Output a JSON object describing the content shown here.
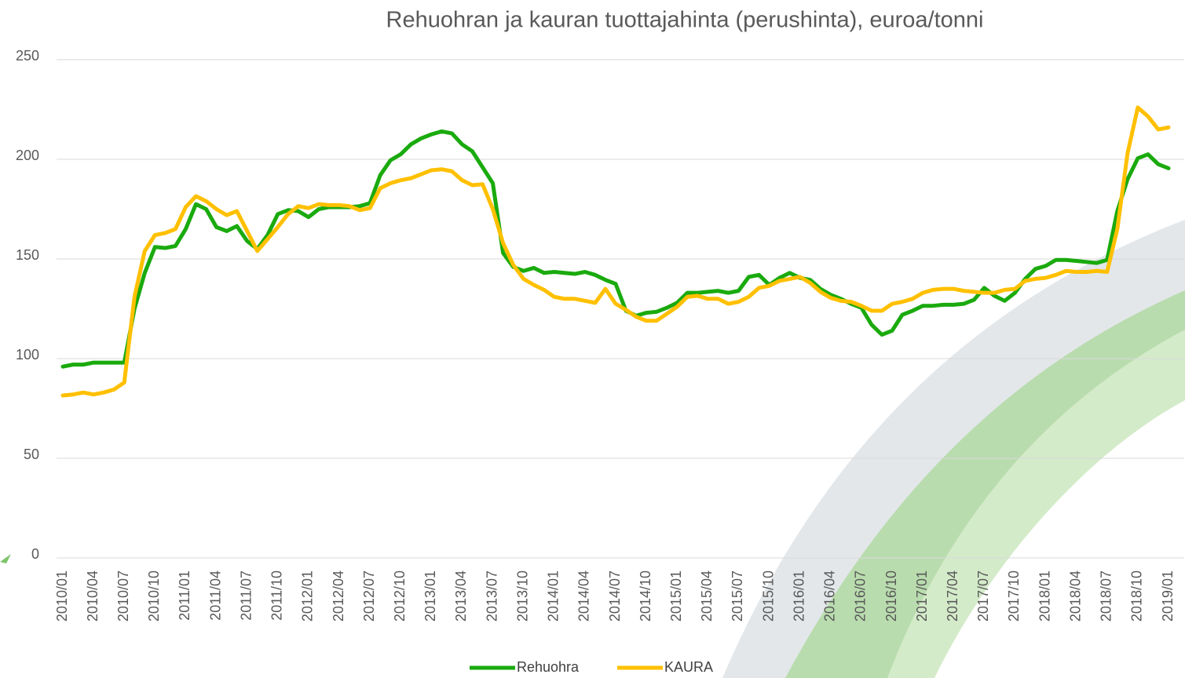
{
  "chart_data": {
    "type": "line",
    "title": "Rehuohran ja kauran tuottajahinta (perushinta), euroa/tonni",
    "categories": [
      "2010/01",
      null,
      null,
      "2010/04",
      null,
      null,
      "2010/07",
      null,
      null,
      "2010/10",
      null,
      null,
      "2011/01",
      null,
      null,
      "2011/04",
      null,
      null,
      "2011/07",
      null,
      null,
      "2011/10",
      null,
      null,
      "2012/01",
      null,
      null,
      "2012/04",
      null,
      null,
      "2012/07",
      null,
      null,
      "2012/10",
      null,
      null,
      "2013/01",
      null,
      null,
      "2013/04",
      null,
      null,
      "2013/07",
      null,
      null,
      "2013/10",
      null,
      null,
      "2014/01",
      null,
      null,
      "2014/04",
      null,
      null,
      "2014/07",
      null,
      null,
      "2014/10",
      null,
      null,
      "2015/01",
      null,
      null,
      "2015/04",
      null,
      null,
      "2015/07",
      null,
      null,
      "2015/10",
      null,
      null,
      "2016/01",
      null,
      null,
      "2016/04",
      null,
      null,
      "2016/07",
      null,
      null,
      "2016/10",
      null,
      null,
      "2017/01",
      null,
      null,
      "2017/04",
      null,
      null,
      "2017/07",
      null,
      null,
      "2017/10",
      null,
      null,
      "2018/01",
      null,
      null,
      "2018/04",
      null,
      null,
      "2018/07",
      null,
      null,
      "2018/10",
      null,
      null,
      "2019/01"
    ],
    "series": [
      {
        "name": "Rehuohra",
        "color": "#1aaa0e",
        "values": [
          96,
          97,
          97,
          98,
          98,
          98,
          98,
          125,
          143,
          156,
          155.5,
          156.5,
          165,
          177.5,
          175,
          166,
          164,
          166.5,
          159,
          155,
          162,
          172.5,
          174.5,
          174,
          171,
          175,
          176,
          176,
          176,
          176.5,
          178,
          192,
          199.5,
          202.5,
          207.5,
          210.5,
          212.5,
          214,
          213,
          207.5,
          204,
          196,
          188,
          153,
          146,
          144,
          145.5,
          143,
          143.5,
          143,
          142.5,
          143.5,
          142,
          139.5,
          137.5,
          124,
          121.5,
          123,
          123.5,
          125.5,
          128,
          133,
          133,
          133.5,
          134,
          133,
          134,
          141,
          142,
          137,
          140.5,
          143,
          140.5,
          139.5,
          135,
          132,
          130,
          127.5,
          125.5,
          117,
          112,
          114,
          122,
          124,
          126.5,
          126.5,
          127,
          127,
          127.5,
          129.5,
          135.5,
          131.5,
          129,
          133,
          140,
          145,
          146.5,
          149.5,
          149.5,
          149,
          148.5,
          148,
          149.5,
          174,
          190,
          200.5,
          202.5,
          197.5,
          195.5
        ]
      },
      {
        "name": "KAURA",
        "color": "#ffc000",
        "values": [
          81.5,
          82,
          83,
          82,
          83,
          84.5,
          88,
          131,
          154,
          162,
          163,
          165,
          176,
          181.5,
          179,
          175,
          172,
          174,
          164,
          154,
          160,
          166,
          172.5,
          176.5,
          175.5,
          177.5,
          177,
          177,
          176.5,
          174.5,
          175.5,
          185.5,
          188,
          189.5,
          190.5,
          192.5,
          194.5,
          195,
          194,
          189.5,
          187,
          187.5,
          175,
          158,
          147,
          140,
          137,
          134.5,
          131,
          130,
          130,
          129,
          128,
          135,
          127.5,
          124.5,
          121,
          119,
          119,
          122.5,
          126,
          131,
          131.5,
          130,
          130,
          127.5,
          128.5,
          131,
          135.5,
          136.5,
          139,
          140,
          141,
          138,
          133.5,
          130.5,
          129,
          128.5,
          126.5,
          124,
          124,
          127.5,
          128.5,
          130,
          133,
          134.5,
          135,
          135,
          134,
          133.5,
          133,
          133,
          134.5,
          135,
          139,
          140,
          140.5,
          142,
          144,
          143.5,
          143.5,
          144,
          143.5,
          165,
          203,
          226,
          221.5,
          215,
          216
        ]
      }
    ],
    "ylim": [
      0,
      250
    ],
    "yticks": [
      0,
      50,
      100,
      150,
      200,
      250
    ],
    "grid": true,
    "legend": "bottom"
  }
}
